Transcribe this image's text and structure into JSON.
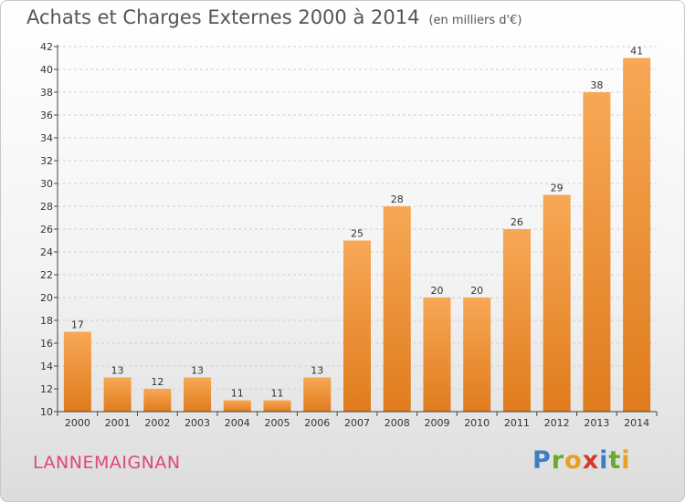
{
  "title": "Achats et Charges Externes 2000 à 2014",
  "unit": "(en milliers d'€)",
  "commune": "LANNEMAIGNAN",
  "logo": {
    "text": "Proxiti",
    "letters": [
      "P",
      "r",
      "o",
      "x",
      "i",
      "t",
      "i"
    ],
    "colors": [
      "#3a7fc4",
      "#6aaa2a",
      "#e8a020",
      "#d8382c",
      "#3a7fc4",
      "#6aaa2a",
      "#e8a020"
    ]
  },
  "colors": {
    "bar_light": "#f7a855",
    "bar_dark": "#e07b1d",
    "grid": "#d0d0d0",
    "axis": "#444",
    "commune": "#e0457b"
  },
  "chart_data": {
    "type": "bar",
    "categories": [
      "2000",
      "2001",
      "2002",
      "2003",
      "2004",
      "2005",
      "2006",
      "2007",
      "2008",
      "2009",
      "2010",
      "2011",
      "2012",
      "2013",
      "2014"
    ],
    "values": [
      17,
      13,
      12,
      13,
      11,
      11,
      13,
      25,
      28,
      20,
      20,
      26,
      29,
      38,
      41
    ],
    "title": "Achats et Charges Externes 2000 à 2014",
    "ylim": [
      10,
      42
    ],
    "yticks": [
      10,
      12,
      14,
      16,
      18,
      20,
      22,
      24,
      26,
      28,
      30,
      32,
      34,
      36,
      38,
      40,
      42
    ],
    "grid": true,
    "data_labels": true
  }
}
